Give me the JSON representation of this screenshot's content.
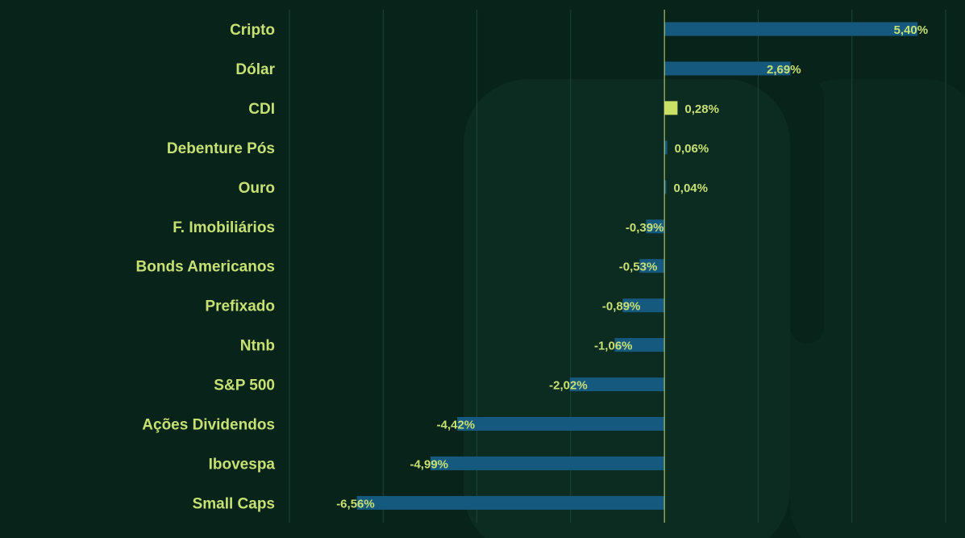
{
  "colors": {
    "background": "#08231a",
    "watermark": "#0c2b21",
    "grid": "#1f4536",
    "zero_line": "#c9e07a",
    "label": "#c6e073",
    "bar_default": "#16597f",
    "bar_highlight": "#c9e266"
  },
  "chart_data": {
    "type": "bar",
    "orientation": "horizontal",
    "title": "",
    "xlabel": "",
    "ylabel": "",
    "xlim": [
      -8.0,
      6.0
    ],
    "grid": true,
    "categories": [
      "Cripto",
      "Dólar",
      "CDI",
      "Debenture Pós",
      "Ouro",
      "F. Imobiliários",
      "Bonds Americanos",
      "Prefixado",
      "Ntnb",
      "S&P 500",
      "Ações Dividendos",
      "Ibovespa",
      "Small Caps"
    ],
    "values": [
      5.4,
      2.69,
      0.28,
      0.06,
      0.04,
      -0.39,
      -0.53,
      -0.89,
      -1.06,
      -2.02,
      -4.42,
      -4.99,
      -6.56
    ],
    "value_labels": [
      "5,40%",
      "2,69%",
      "0,28%",
      "0,06%",
      "0,04%",
      "-0,39%",
      "-0,53%",
      "-0,89%",
      "-1,06%",
      "-2,02%",
      "-4,42%",
      "-4,99%",
      "-6,56%"
    ],
    "highlight_category": "CDI"
  }
}
